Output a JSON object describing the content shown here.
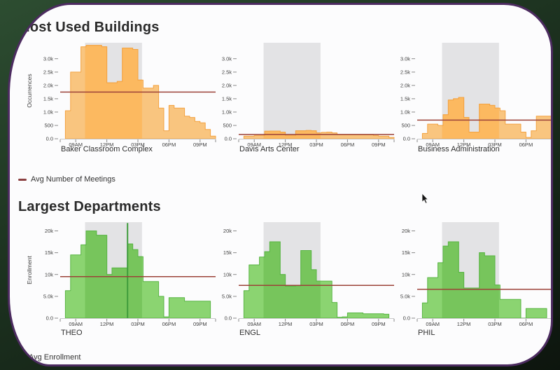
{
  "sections": [
    {
      "heading": "Most Used Buildings"
    },
    {
      "heading": "Largest Departments"
    }
  ],
  "legends": [
    {
      "label": "Avg Number of Meetings",
      "swatch_color": "#8b4041"
    },
    {
      "label": "Avg Enrollment",
      "swatch_color": "#8b4041"
    }
  ],
  "colors": {
    "band": "#e3e3e5",
    "avg_line": "#9c4238",
    "axis_line": "#c9c9c9",
    "tick_mark": "#8a8a8a",
    "tick_text": "#3f3f3f",
    "title_text": "#2e2e2e",
    "card_border": "#4c2b60",
    "orange": {
      "light": "#f9c57f",
      "strong": "#fcb960",
      "stroke": "#f3a240",
      "spike": "#e8920f"
    },
    "green": {
      "light": "#8bd471",
      "strong": "#77c55c",
      "stroke": "#59b544",
      "spike": "#3f9c3c"
    }
  },
  "chart_data": [
    {
      "type": "area",
      "section": "Most Used Buildings",
      "title": "Baker Classroom Complex",
      "ylabel": "Occurrences",
      "palette": "orange",
      "ylim": [
        0,
        3600
      ],
      "x_domain_hours": [
        7.5,
        22.5
      ],
      "band_hours": [
        9.9,
        15.4
      ],
      "avg_line": 1750,
      "bins_start_hour": 8,
      "bin_width_hours": 0.5,
      "values": [
        1050,
        2500,
        2500,
        3450,
        3500,
        3500,
        3500,
        3450,
        2100,
        2100,
        2150,
        3400,
        3400,
        3350,
        2200,
        1900,
        1900,
        2000,
        1150,
        300,
        1250,
        1150,
        1150,
        850,
        800,
        650,
        600,
        350,
        100
      ],
      "yticks": [
        {
          "v": 0,
          "label": "0.0"
        },
        {
          "v": 500,
          "label": "500"
        },
        {
          "v": 1000,
          "label": "1.0k"
        },
        {
          "v": 1500,
          "label": "1.5k"
        },
        {
          "v": 2000,
          "label": "2.0k"
        },
        {
          "v": 2500,
          "label": "2.5k"
        },
        {
          "v": 3000,
          "label": "3.0k"
        }
      ],
      "xticks": [
        {
          "h": 9,
          "label": "09AM"
        },
        {
          "h": 12,
          "label": "12PM"
        },
        {
          "h": 15,
          "label": "03PM"
        },
        {
          "h": 18,
          "label": "06PM"
        },
        {
          "h": 21,
          "label": "09PM"
        }
      ]
    },
    {
      "type": "area",
      "section": "Most Used Buildings",
      "title": "Davis Arts Center",
      "ylabel": "",
      "palette": "orange",
      "ylim": [
        0,
        3600
      ],
      "x_domain_hours": [
        7.5,
        22.5
      ],
      "band_hours": [
        9.9,
        15.4
      ],
      "avg_line": 160,
      "bins_start_hour": 8,
      "bin_width_hours": 0.5,
      "values": [
        100,
        100,
        120,
        120,
        280,
        290,
        290,
        250,
        120,
        120,
        300,
        300,
        310,
        300,
        220,
        240,
        250,
        220,
        150,
        150,
        150,
        150,
        150,
        150,
        150,
        120,
        100,
        100,
        50
      ],
      "yticks": [
        {
          "v": 0,
          "label": "0.0"
        },
        {
          "v": 500,
          "label": "500"
        },
        {
          "v": 1000,
          "label": "1.0k"
        },
        {
          "v": 1500,
          "label": "1.5k"
        },
        {
          "v": 2000,
          "label": "2.0k"
        },
        {
          "v": 2500,
          "label": "2.5k"
        },
        {
          "v": 3000,
          "label": "3.0k"
        }
      ],
      "xticks": [
        {
          "h": 9,
          "label": "09AM"
        },
        {
          "h": 12,
          "label": "12PM"
        },
        {
          "h": 15,
          "label": "03PM"
        },
        {
          "h": 18,
          "label": "06PM"
        },
        {
          "h": 21,
          "label": "09PM"
        }
      ]
    },
    {
      "type": "area",
      "section": "Most Used Buildings",
      "title": "Business Administration",
      "ylabel": "",
      "palette": "orange",
      "ylim": [
        0,
        3600
      ],
      "x_domain_hours": [
        7.5,
        22.5
      ],
      "band_hours": [
        9.9,
        15.4
      ],
      "avg_line": 700,
      "bins_start_hour": 8,
      "bin_width_hours": 0.5,
      "values": [
        200,
        550,
        550,
        500,
        900,
        1450,
        1500,
        1550,
        800,
        250,
        250,
        1300,
        1300,
        1250,
        1150,
        1050,
        550,
        550,
        550,
        250,
        50,
        300,
        850,
        850,
        850,
        850
      ],
      "yticks": [
        {
          "v": 0,
          "label": "0.0"
        },
        {
          "v": 500,
          "label": "500"
        },
        {
          "v": 1000,
          "label": "1.0k"
        },
        {
          "v": 1500,
          "label": "1.5k"
        },
        {
          "v": 2000,
          "label": "2.0k"
        },
        {
          "v": 2500,
          "label": "2.5k"
        },
        {
          "v": 3000,
          "label": "3.0k"
        }
      ],
      "xticks": [
        {
          "h": 9,
          "label": "09AM"
        },
        {
          "h": 12,
          "label": "12PM"
        },
        {
          "h": 15,
          "label": "03PM"
        },
        {
          "h": 18,
          "label": "06PM"
        }
      ]
    },
    {
      "type": "area",
      "section": "Largest Departments",
      "title": "THEO",
      "ylabel": "Enrollment",
      "palette": "green",
      "ylim": [
        0,
        22000
      ],
      "x_domain_hours": [
        7.5,
        22.5
      ],
      "band_hours": [
        9.9,
        15.4
      ],
      "avg_line": 9500,
      "bins_start_hour": 8,
      "bin_width_hours": 0.5,
      "spike": {
        "hour": 14.0,
        "value": 21800
      },
      "values": [
        6300,
        14500,
        14500,
        16800,
        20000,
        20000,
        19000,
        19000,
        10000,
        11500,
        11500,
        11500,
        17000,
        15700,
        14100,
        8400,
        8400,
        8400,
        5000,
        300,
        4700,
        4700,
        4700,
        3900,
        3900,
        3900,
        3900,
        3900
      ],
      "yticks": [
        {
          "v": 0,
          "label": "0.0"
        },
        {
          "v": 5000,
          "label": "5.0k"
        },
        {
          "v": 10000,
          "label": "10k"
        },
        {
          "v": 15000,
          "label": "15k"
        },
        {
          "v": 20000,
          "label": "20k"
        }
      ],
      "xticks": [
        {
          "h": 9,
          "label": "09AM"
        },
        {
          "h": 12,
          "label": "12PM"
        },
        {
          "h": 15,
          "label": "03PM"
        },
        {
          "h": 18,
          "label": "06PM"
        },
        {
          "h": 21,
          "label": "09PM"
        }
      ]
    },
    {
      "type": "area",
      "section": "Largest Departments",
      "title": "ENGL",
      "ylabel": "",
      "palette": "green",
      "ylim": [
        0,
        22000
      ],
      "x_domain_hours": [
        7.5,
        22.5
      ],
      "band_hours": [
        9.9,
        15.4
      ],
      "avg_line": 7500,
      "bins_start_hour": 8,
      "bin_width_hours": 0.5,
      "values": [
        6300,
        12200,
        12200,
        14000,
        15200,
        17500,
        17500,
        10000,
        7300,
        7300,
        7400,
        15500,
        15500,
        11100,
        8500,
        8500,
        8500,
        3600,
        200,
        300,
        1200,
        1200,
        1200,
        1000,
        1000,
        1000,
        1000,
        900
      ],
      "yticks": [
        {
          "v": 0,
          "label": "0.0"
        },
        {
          "v": 5000,
          "label": "5.0k"
        },
        {
          "v": 10000,
          "label": "10k"
        },
        {
          "v": 15000,
          "label": "15k"
        },
        {
          "v": 20000,
          "label": "20k"
        }
      ],
      "xticks": [
        {
          "h": 9,
          "label": "09AM"
        },
        {
          "h": 12,
          "label": "12PM"
        },
        {
          "h": 15,
          "label": "03PM"
        },
        {
          "h": 18,
          "label": "06PM"
        },
        {
          "h": 21,
          "label": "09PM"
        }
      ]
    },
    {
      "type": "area",
      "section": "Largest Departments",
      "title": "PHIL",
      "ylabel": "",
      "palette": "green",
      "ylim": [
        0,
        22000
      ],
      "x_domain_hours": [
        7.5,
        22.5
      ],
      "band_hours": [
        9.9,
        15.4
      ],
      "avg_line": 6600,
      "bins_start_hour": 8,
      "bin_width_hours": 0.5,
      "values": [
        3500,
        9300,
        9300,
        12700,
        16500,
        17500,
        17500,
        10500,
        6900,
        6900,
        6900,
        15000,
        14300,
        14300,
        7600,
        4300,
        4300,
        4300,
        4300,
        0,
        2200,
        2200,
        2200,
        2200
      ],
      "yticks": [
        {
          "v": 0,
          "label": "0.0"
        },
        {
          "v": 5000,
          "label": "5.0k"
        },
        {
          "v": 10000,
          "label": "10k"
        },
        {
          "v": 15000,
          "label": "15k"
        },
        {
          "v": 20000,
          "label": "20k"
        }
      ],
      "xticks": [
        {
          "h": 9,
          "label": "09AM"
        },
        {
          "h": 12,
          "label": "12PM"
        },
        {
          "h": 15,
          "label": "03PM"
        },
        {
          "h": 18,
          "label": "06PM"
        }
      ]
    }
  ]
}
